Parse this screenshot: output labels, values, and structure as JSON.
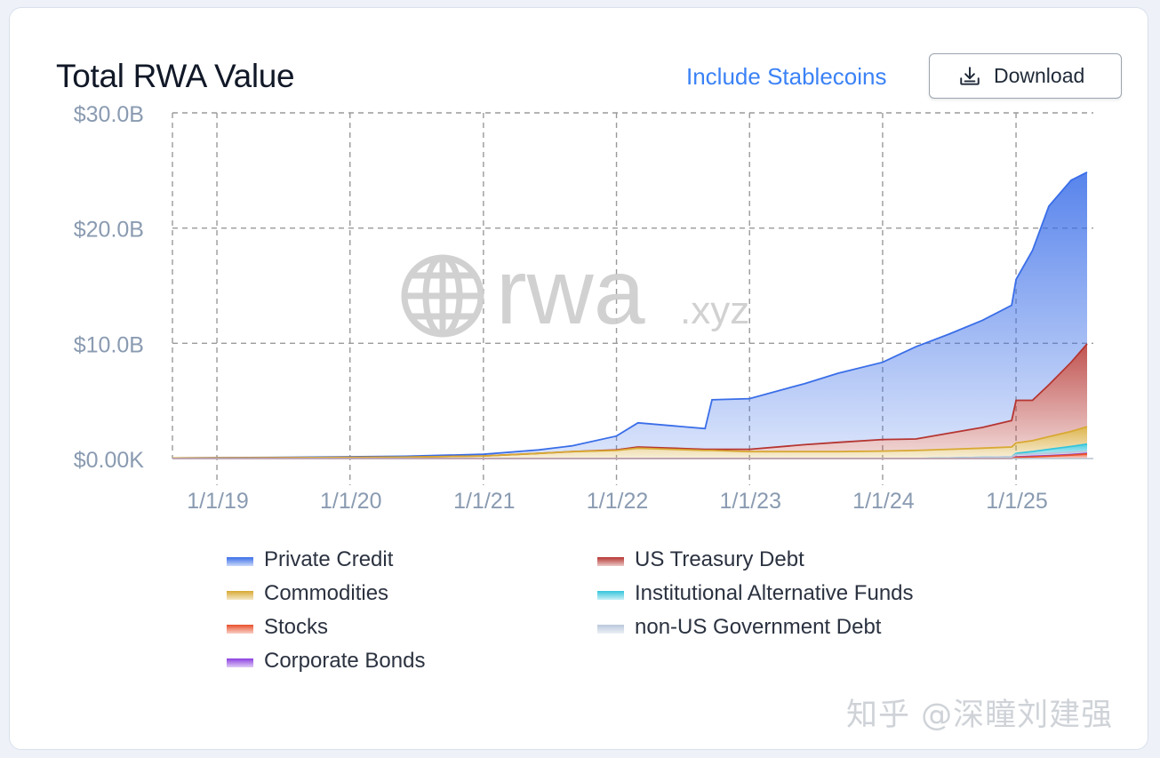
{
  "header": {
    "title": "Total RWA Value",
    "stablecoin_toggle_label": "Include Stablecoins",
    "download_label": "Download"
  },
  "colors": {
    "accent": "#3b82f6",
    "private_credit": "#3a6ee8",
    "us_treasury_debt": "#b53531",
    "commodities": "#d8a933",
    "institutional_alternative_funds": "#35c5dc",
    "stocks": "#e8502c",
    "non_us_government_debt": "#b9c8dc",
    "corporate_bonds": "#8b3fe0"
  },
  "watermark_logo": {
    "globe_icon": "globe-icon",
    "text_main": "rwa",
    "text_suffix": ".xyz"
  },
  "footer_watermark": "知乎 @深瞳刘建强",
  "chart_data": {
    "type": "area",
    "stacked": true,
    "title": "Total RWA Value",
    "xlabel": "",
    "ylabel": "",
    "ylim": [
      0,
      30
    ],
    "y_ticks": [
      {
        "value": 0,
        "label": "$0.00K"
      },
      {
        "value": 10,
        "label": "$10.0B"
      },
      {
        "value": 20,
        "label": "$20.0B"
      },
      {
        "value": 30,
        "label": "$30.0B"
      }
    ],
    "x_ticks": [
      "1/1/19",
      "1/1/20",
      "1/1/21",
      "1/1/22",
      "1/1/23",
      "1/1/24",
      "1/1/25"
    ],
    "xlim": [
      "2018-09-01",
      "2025-08-01"
    ],
    "grid": true,
    "legend_position": "bottom",
    "x": [
      "2018-09-01",
      "2019-06-01",
      "2020-06-01",
      "2021-01-01",
      "2021-06-01",
      "2021-09-01",
      "2022-01-01",
      "2022-03-01",
      "2022-09-01",
      "2022-09-20",
      "2023-01-01",
      "2023-06-01",
      "2023-09-01",
      "2024-01-01",
      "2024-04-01",
      "2024-07-01",
      "2024-10-01",
      "2024-12-20",
      "2025-01-01",
      "2025-02-15",
      "2025-04-01",
      "2025-06-01",
      "2025-07-15"
    ],
    "series": [
      {
        "name": "Stocks",
        "values": [
          0,
          0,
          0,
          0,
          0,
          0,
          0,
          0,
          0,
          0,
          0,
          0,
          0,
          0,
          0,
          0,
          0,
          0,
          0.1,
          0.15,
          0.2,
          0.3,
          0.4
        ]
      },
      {
        "name": "Corporate Bonds",
        "values": [
          0,
          0,
          0,
          0,
          0,
          0,
          0,
          0,
          0,
          0,
          0,
          0,
          0,
          0,
          0,
          0,
          0,
          0,
          0.05,
          0.05,
          0.05,
          0.05,
          0.05
        ]
      },
      {
        "name": "non-US Government Debt",
        "values": [
          0,
          0,
          0,
          0,
          0,
          0,
          0,
          0,
          0,
          0,
          0,
          0,
          0,
          0,
          0,
          0.05,
          0.1,
          0.15,
          0.2,
          0.2,
          0.2,
          0.2,
          0.2
        ]
      },
      {
        "name": "Institutional Alternative Funds",
        "values": [
          0,
          0,
          0,
          0,
          0,
          0,
          0,
          0,
          0,
          0,
          0,
          0,
          0,
          0,
          0,
          0,
          0,
          0,
          0.1,
          0.2,
          0.35,
          0.5,
          0.6
        ]
      },
      {
        "name": "Commodities",
        "values": [
          0.05,
          0.07,
          0.12,
          0.22,
          0.45,
          0.6,
          0.7,
          0.9,
          0.7,
          0.7,
          0.6,
          0.6,
          0.6,
          0.65,
          0.7,
          0.75,
          0.8,
          0.85,
          0.9,
          0.95,
          1.1,
          1.3,
          1.5
        ]
      },
      {
        "name": "US Treasury Debt",
        "values": [
          0,
          0,
          0,
          0,
          0,
          0,
          0.05,
          0.1,
          0.1,
          0.1,
          0.2,
          0.6,
          0.8,
          1.0,
          1.0,
          1.4,
          1.8,
          2.3,
          3.7,
          3.5,
          4.5,
          6.0,
          7.2
        ]
      },
      {
        "name": "Private Credit",
        "values": [
          0,
          0.02,
          0.08,
          0.15,
          0.3,
          0.5,
          1.2,
          2.1,
          1.8,
          4.3,
          4.4,
          5.3,
          6.0,
          6.7,
          8.0,
          8.6,
          9.3,
          10.0,
          10.5,
          13.0,
          15.5,
          15.8,
          14.9
        ]
      }
    ]
  }
}
